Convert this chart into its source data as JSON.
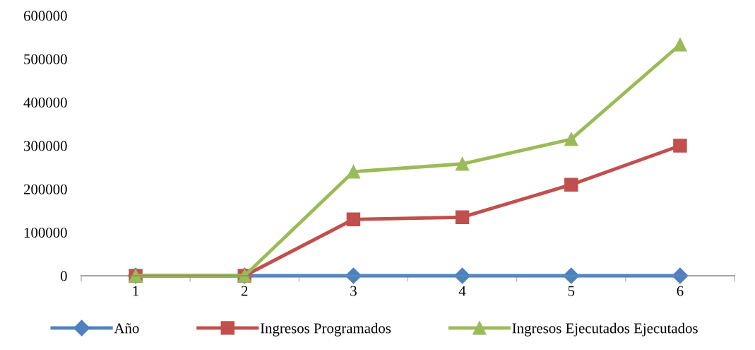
{
  "chart_data": {
    "type": "line",
    "categories": [
      "1",
      "2",
      "3",
      "4",
      "5",
      "6"
    ],
    "series": [
      {
        "name": "Año",
        "color": "#4f81bd",
        "marker": "diamond",
        "values": [
          0,
          0,
          0,
          0,
          0,
          0
        ]
      },
      {
        "name": "Ingresos Programados",
        "color": "#c0504d",
        "marker": "square",
        "values": [
          0,
          0,
          130000,
          135000,
          210000,
          300000
        ]
      },
      {
        "name": "Ingresos Ejecutados Ejecutados",
        "color": "#9bbb59",
        "marker": "triangle",
        "values": [
          0,
          0,
          240000,
          258000,
          315000,
          533000
        ]
      }
    ],
    "ylim": [
      0,
      600000
    ],
    "yticks": [
      0,
      100000,
      200000,
      300000,
      400000,
      500000,
      600000
    ],
    "grid": false,
    "legend": "bottom",
    "line_style": "solid"
  }
}
